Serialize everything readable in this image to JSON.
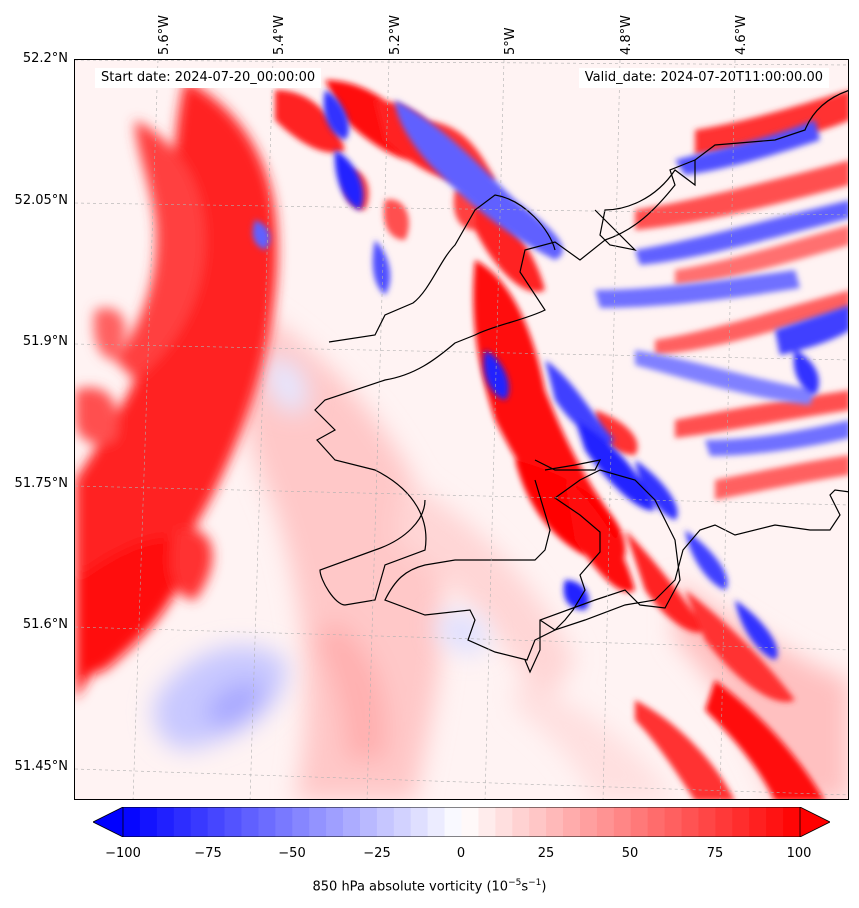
{
  "map": {
    "start_date_label": "Start date: 2024-07-20_00:00:00",
    "valid_date_label": "Valid_date: 2024-07-20T11:00:00.00",
    "lon_labels": [
      "5.6°W",
      "5.4°W",
      "5.2°W",
      "5°W",
      "4.8°W",
      "4.6°W"
    ],
    "lat_labels": [
      "52.2°N",
      "52.05°N",
      "51.9°N",
      "51.75°N",
      "51.6°N",
      "51.45°N"
    ],
    "field_colors": {
      "strong_positive": "#ff0000",
      "positive": "#ff8080",
      "weak_positive": "#ffd0d0",
      "neutral": "#ffffff",
      "weak_negative": "#d0d0ff",
      "strong_negative": "#0000ff"
    }
  },
  "colorbar": {
    "ticks": [
      "−100",
      "−75",
      "−50",
      "−25",
      "0",
      "25",
      "50",
      "75",
      "100"
    ],
    "min": -100,
    "max": 100,
    "levels": 40,
    "label_main": "850 hPa absolute vorticity (10",
    "label_exp1": "−5",
    "label_mid": "s",
    "label_exp2": "−1",
    "label_end": ")"
  }
}
